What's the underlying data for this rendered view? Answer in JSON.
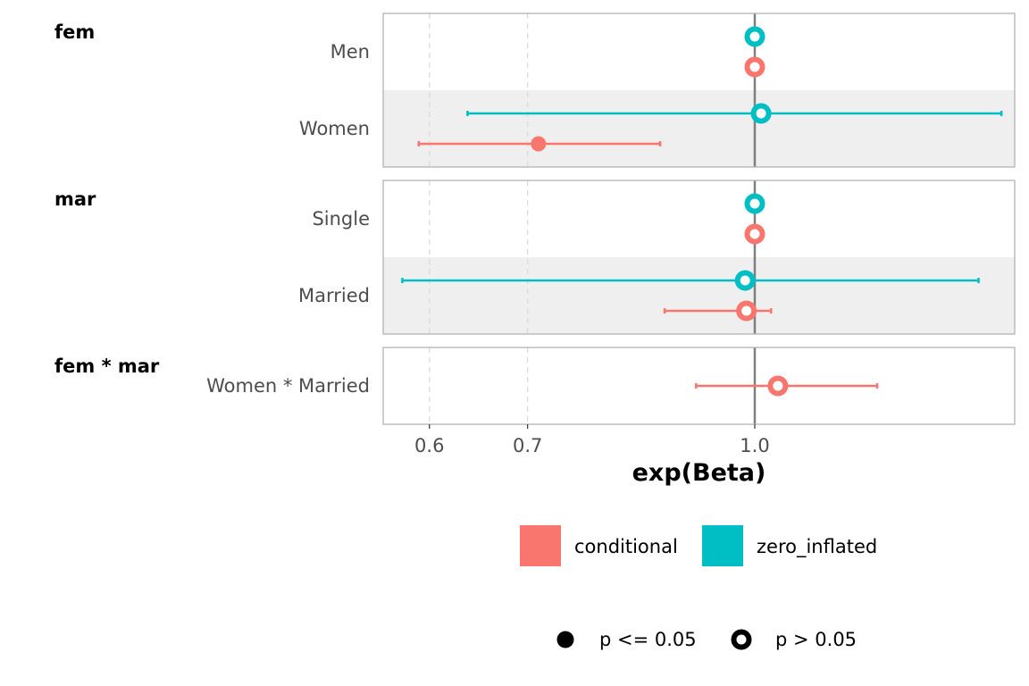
{
  "chart_data": {
    "type": "forest",
    "xlabel": "exp(Beta)",
    "x_scale": "log",
    "xlim": [
      0.558,
      1.504
    ],
    "x_ticks": [
      0.6,
      0.7,
      1.0
    ],
    "x_tick_labels": [
      "0.6",
      "0.7",
      "1.0"
    ],
    "reference_line": 1.0,
    "grid": "vertical-dashed",
    "series_colors": {
      "conditional": "#F8766D",
      "zero_inflated": "#00BFC4"
    },
    "panels": [
      {
        "group": "fem",
        "rows": [
          {
            "term": "Men",
            "shaded": false,
            "estimates": [
              {
                "component": "zero_inflated",
                "estimate": 1.0,
                "ci": null,
                "significant": false
              },
              {
                "component": "conditional",
                "estimate": 1.0,
                "ci": null,
                "significant": false
              }
            ]
          },
          {
            "term": "Women",
            "shaded": true,
            "estimates": [
              {
                "component": "zero_inflated",
                "estimate": 1.01,
                "ci": [
                  0.637,
                  1.473
                ],
                "significant": false
              },
              {
                "component": "conditional",
                "estimate": 0.712,
                "ci": [
                  0.59,
                  0.862
                ],
                "significant": true
              }
            ]
          }
        ]
      },
      {
        "group": "mar",
        "rows": [
          {
            "term": "Single",
            "shaded": false,
            "estimates": [
              {
                "component": "zero_inflated",
                "estimate": 1.0,
                "ci": null,
                "significant": false
              },
              {
                "component": "conditional",
                "estimate": 1.0,
                "ci": null,
                "significant": false
              }
            ]
          },
          {
            "term": "Married",
            "shaded": true,
            "estimates": [
              {
                "component": "zero_inflated",
                "estimate": 0.985,
                "ci": [
                  0.575,
                  1.421
                ],
                "significant": false
              },
              {
                "component": "conditional",
                "estimate": 0.987,
                "ci": [
                  0.868,
                  1.026
                ],
                "significant": false
              }
            ]
          }
        ]
      },
      {
        "group": "fem * mar",
        "rows": [
          {
            "term": "Women * Married",
            "shaded": false,
            "estimates": [
              {
                "component": "conditional",
                "estimate": 1.037,
                "ci": [
                  0.912,
                  1.212
                ],
                "significant": false
              }
            ]
          }
        ]
      }
    ],
    "legend": {
      "color": [
        {
          "label": "conditional",
          "color": "#F8766D"
        },
        {
          "label": "zero_inflated",
          "color": "#00BFC4"
        }
      ],
      "shape": [
        {
          "label": "p <= 0.05",
          "shape": "filled"
        },
        {
          "label": "p > 0.05",
          "shape": "hollow"
        }
      ],
      "position": "bottom"
    }
  }
}
